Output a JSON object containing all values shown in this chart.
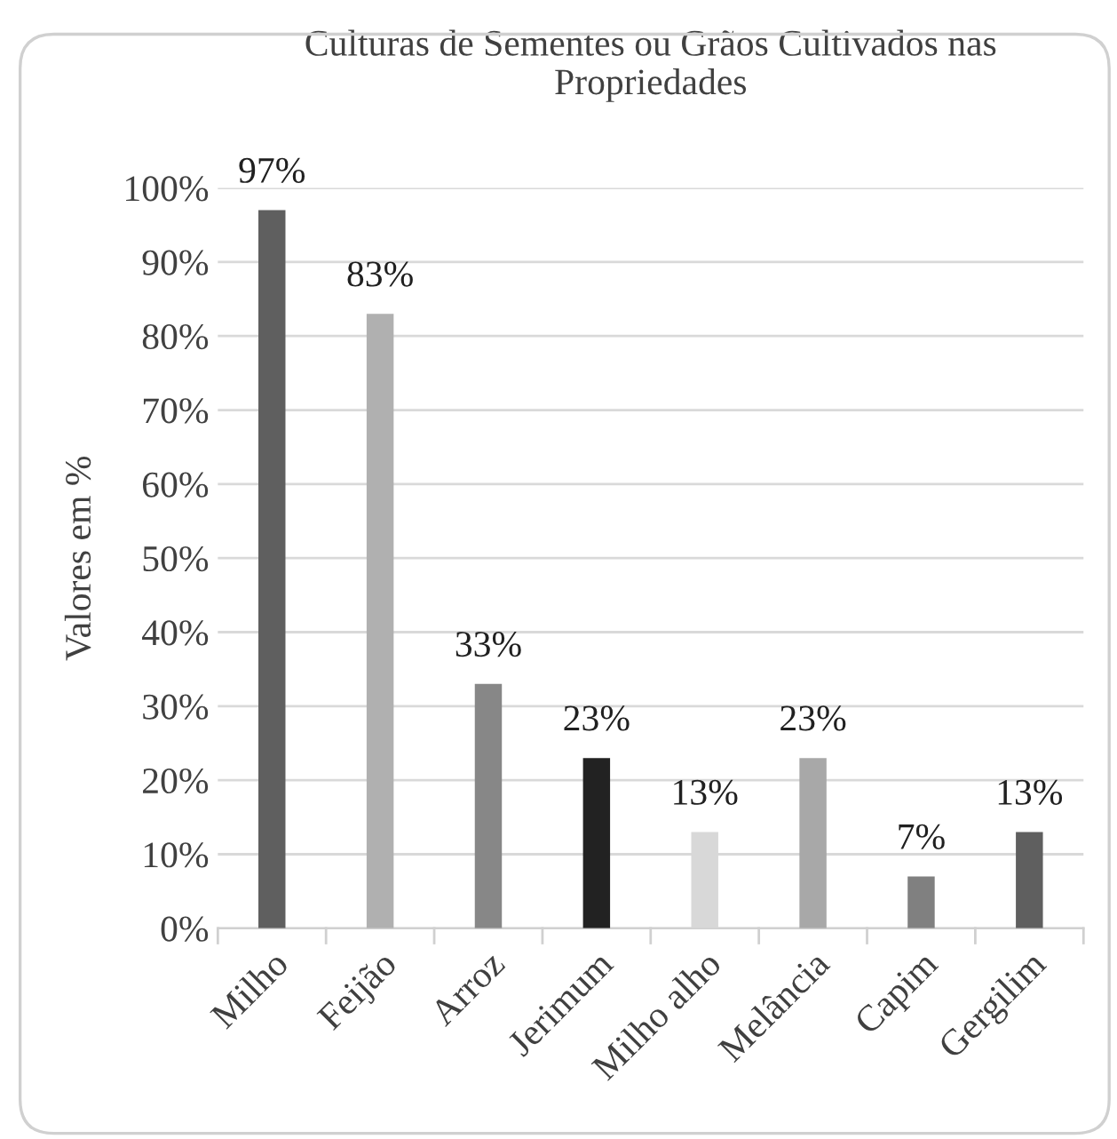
{
  "chart_data": {
    "type": "bar",
    "title": "Culturas de Sementes ou Grãos Cultivados nas\nPropriedades",
    "ylabel": "Valores em %",
    "categories": [
      "Milho",
      "Feijão",
      "Arroz",
      "Jerimum",
      "Milho alho",
      "Melância",
      "Capim",
      "Gergilim"
    ],
    "values": [
      97,
      83,
      33,
      23,
      13,
      23,
      7,
      13
    ],
    "colors": [
      "#5f5f5f",
      "#b0b0b0",
      "#878787",
      "#222222",
      "#d8d8d8",
      "#a8a8a8",
      "#808080",
      "#5f5f5f"
    ],
    "value_labels": [
      "97%",
      "83%",
      "33%",
      "23%",
      "13%",
      "23%",
      "7%",
      "13%"
    ],
    "ylim": [
      0,
      100
    ],
    "yticks": [
      {
        "value": 0,
        "label": "0%"
      },
      {
        "value": 10,
        "label": "10%"
      },
      {
        "value": 20,
        "label": "20%"
      },
      {
        "value": 30,
        "label": "30%"
      },
      {
        "value": 40,
        "label": "40%"
      },
      {
        "value": 50,
        "label": "50%"
      },
      {
        "value": 60,
        "label": "60%"
      },
      {
        "value": 70,
        "label": "70%"
      },
      {
        "value": 80,
        "label": "80%"
      },
      {
        "value": 90,
        "label": "90%"
      },
      {
        "value": 100,
        "label": "100%"
      }
    ],
    "grid": "y",
    "legend": false
  }
}
